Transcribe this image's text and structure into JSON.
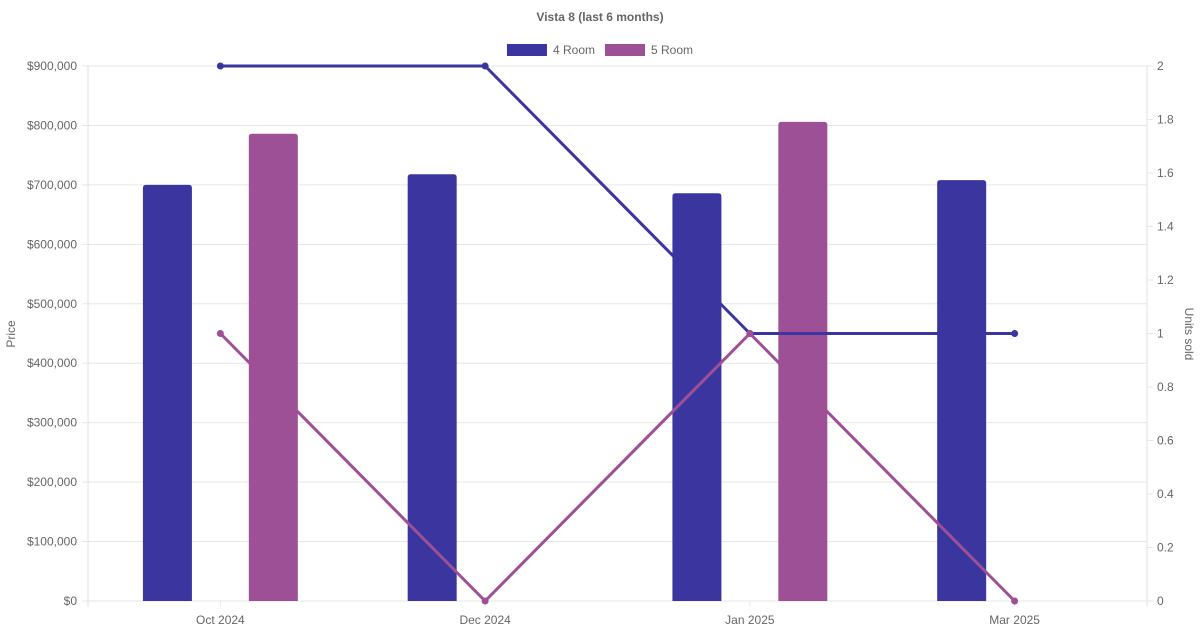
{
  "chart_data": {
    "type": "bar",
    "title": "Vista 8 (last 6 months)",
    "categories": [
      "Oct 2024",
      "Dec 2024",
      "Jan 2025",
      "Mar 2025"
    ],
    "legend": {
      "position": "top",
      "entries": [
        "4 Room",
        "5 Room"
      ]
    },
    "y_left": {
      "label": "Price",
      "range": [
        0,
        900000
      ],
      "ticks": [
        0,
        100000,
        200000,
        300000,
        400000,
        500000,
        600000,
        700000,
        800000,
        900000
      ],
      "tick_labels": [
        "$0",
        "$100,000",
        "$200,000",
        "$300,000",
        "$400,000",
        "$500,000",
        "$600,000",
        "$700,000",
        "$800,000",
        "$900,000"
      ]
    },
    "y_right": {
      "label": "Units sold",
      "range": [
        0,
        2
      ],
      "ticks": [
        0,
        0.2,
        0.4,
        0.6,
        0.8,
        1,
        1.2,
        1.4,
        1.6,
        1.8,
        2
      ],
      "tick_labels": [
        "0",
        "0.2",
        "0.4",
        "0.6",
        "0.8",
        "1",
        "1.2",
        "1.4",
        "1.6",
        "1.8",
        "2"
      ]
    },
    "grid": true,
    "bar_series": [
      {
        "name": "4 Room",
        "color": "#3b35a0",
        "values": [
          700000,
          718000,
          686000,
          708000
        ]
      },
      {
        "name": "5 Room",
        "color": "#9d5095",
        "values": [
          786000,
          null,
          806000,
          null
        ]
      }
    ],
    "line_series": [
      {
        "name": "4 Room",
        "color": "#3b35a0",
        "values": [
          2,
          2,
          1,
          1
        ]
      },
      {
        "name": "5 Room",
        "color": "#9d5095",
        "values": [
          1,
          0,
          1,
          0
        ]
      }
    ]
  }
}
